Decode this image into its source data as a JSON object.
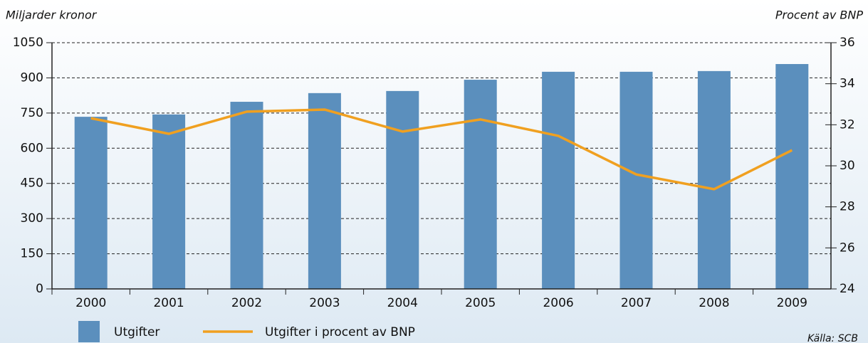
{
  "chart_data": {
    "type": "bar_line",
    "y_label": "Miljarder kronor",
    "y2_label": "Procent av BNP",
    "source": "Källa: SCB",
    "categories": [
      "2000",
      "2001",
      "2002",
      "2003",
      "2004",
      "2005",
      "2006",
      "2007",
      "2008",
      "2009"
    ],
    "series": [
      {
        "name": "Utgifter",
        "type": "bar",
        "color": "#5b8fbd",
        "values": [
          734,
          744,
          798,
          835,
          844,
          892,
          926,
          926,
          929,
          959
        ]
      },
      {
        "name": "Utgifter i procent av BNP",
        "type": "line",
        "axis": "y2",
        "color": "#f0a020",
        "values": [
          32.32,
          31.56,
          32.64,
          32.74,
          31.67,
          32.26,
          31.46,
          29.58,
          28.86,
          30.76
        ]
      }
    ],
    "ylim": [
      0,
      1050
    ],
    "yticks": [
      0,
      150,
      300,
      450,
      600,
      750,
      900,
      1050
    ],
    "y2lim": [
      24,
      36
    ],
    "y2ticks": [
      24,
      26,
      28,
      30,
      32,
      34,
      36
    ],
    "grid": true
  }
}
